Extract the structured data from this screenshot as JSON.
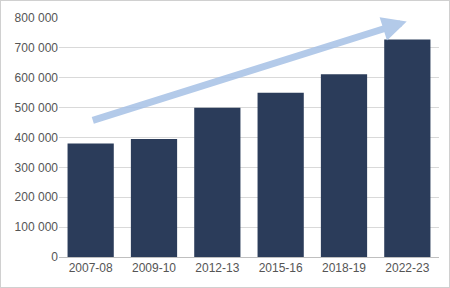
{
  "chart_data": {
    "type": "bar",
    "categories": [
      "2007-08",
      "2009-10",
      "2012-13",
      "2015-16",
      "2018-19",
      "2022-23"
    ],
    "values": [
      380000,
      395000,
      500000,
      550000,
      612000,
      728000
    ],
    "color": "#2b3c5a",
    "ylim": [
      0,
      800000
    ],
    "yticks": [
      0,
      {
        "value": 100000,
        "label": "100 000"
      },
      {
        "value": 200000,
        "label": "200 000"
      },
      {
        "value": 300000,
        "label": "300 000"
      },
      {
        "value": 400000,
        "label": "400 000"
      },
      {
        "value": 500000,
        "label": "500 000"
      },
      {
        "value": 600000,
        "label": "600 000"
      },
      {
        "value": 700000,
        "label": "700 000"
      },
      {
        "value": 800000,
        "label": "800 000"
      }
    ],
    "grid": true
  }
}
